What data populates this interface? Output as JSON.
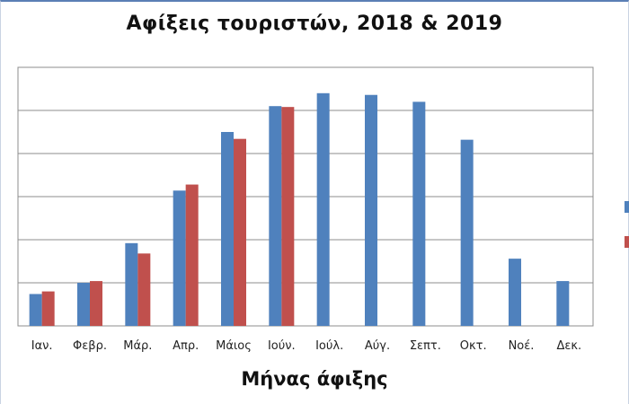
{
  "chart_data": {
    "type": "bar",
    "title": "Αφίξεις τουριστών, 2018 & 2019",
    "xlabel": "Μήνας άφιξης",
    "ylabel": "",
    "ylim": [
      0,
      300
    ],
    "y_axis_labels_visible": false,
    "grid": true,
    "legend": "right (labels cut off)",
    "categories": [
      "Ιαν.",
      "Φεβρ.",
      "Μάρ.",
      "Απρ.",
      "Μάιος",
      "Ιούν.",
      "Ιούλ.",
      "Αύγ.",
      "Σεπτ.",
      "Οκτ.",
      "Νοέ.",
      "Δεκ."
    ],
    "series": [
      {
        "color": "#4f81bd",
        "values": [
          37,
          50,
          96,
          157,
          225,
          255,
          270,
          268,
          260,
          216,
          78,
          52
        ]
      },
      {
        "color": "#c0504d",
        "values": [
          40,
          52,
          84,
          164,
          217,
          254,
          null,
          null,
          null,
          null,
          null,
          null
        ]
      }
    ]
  }
}
